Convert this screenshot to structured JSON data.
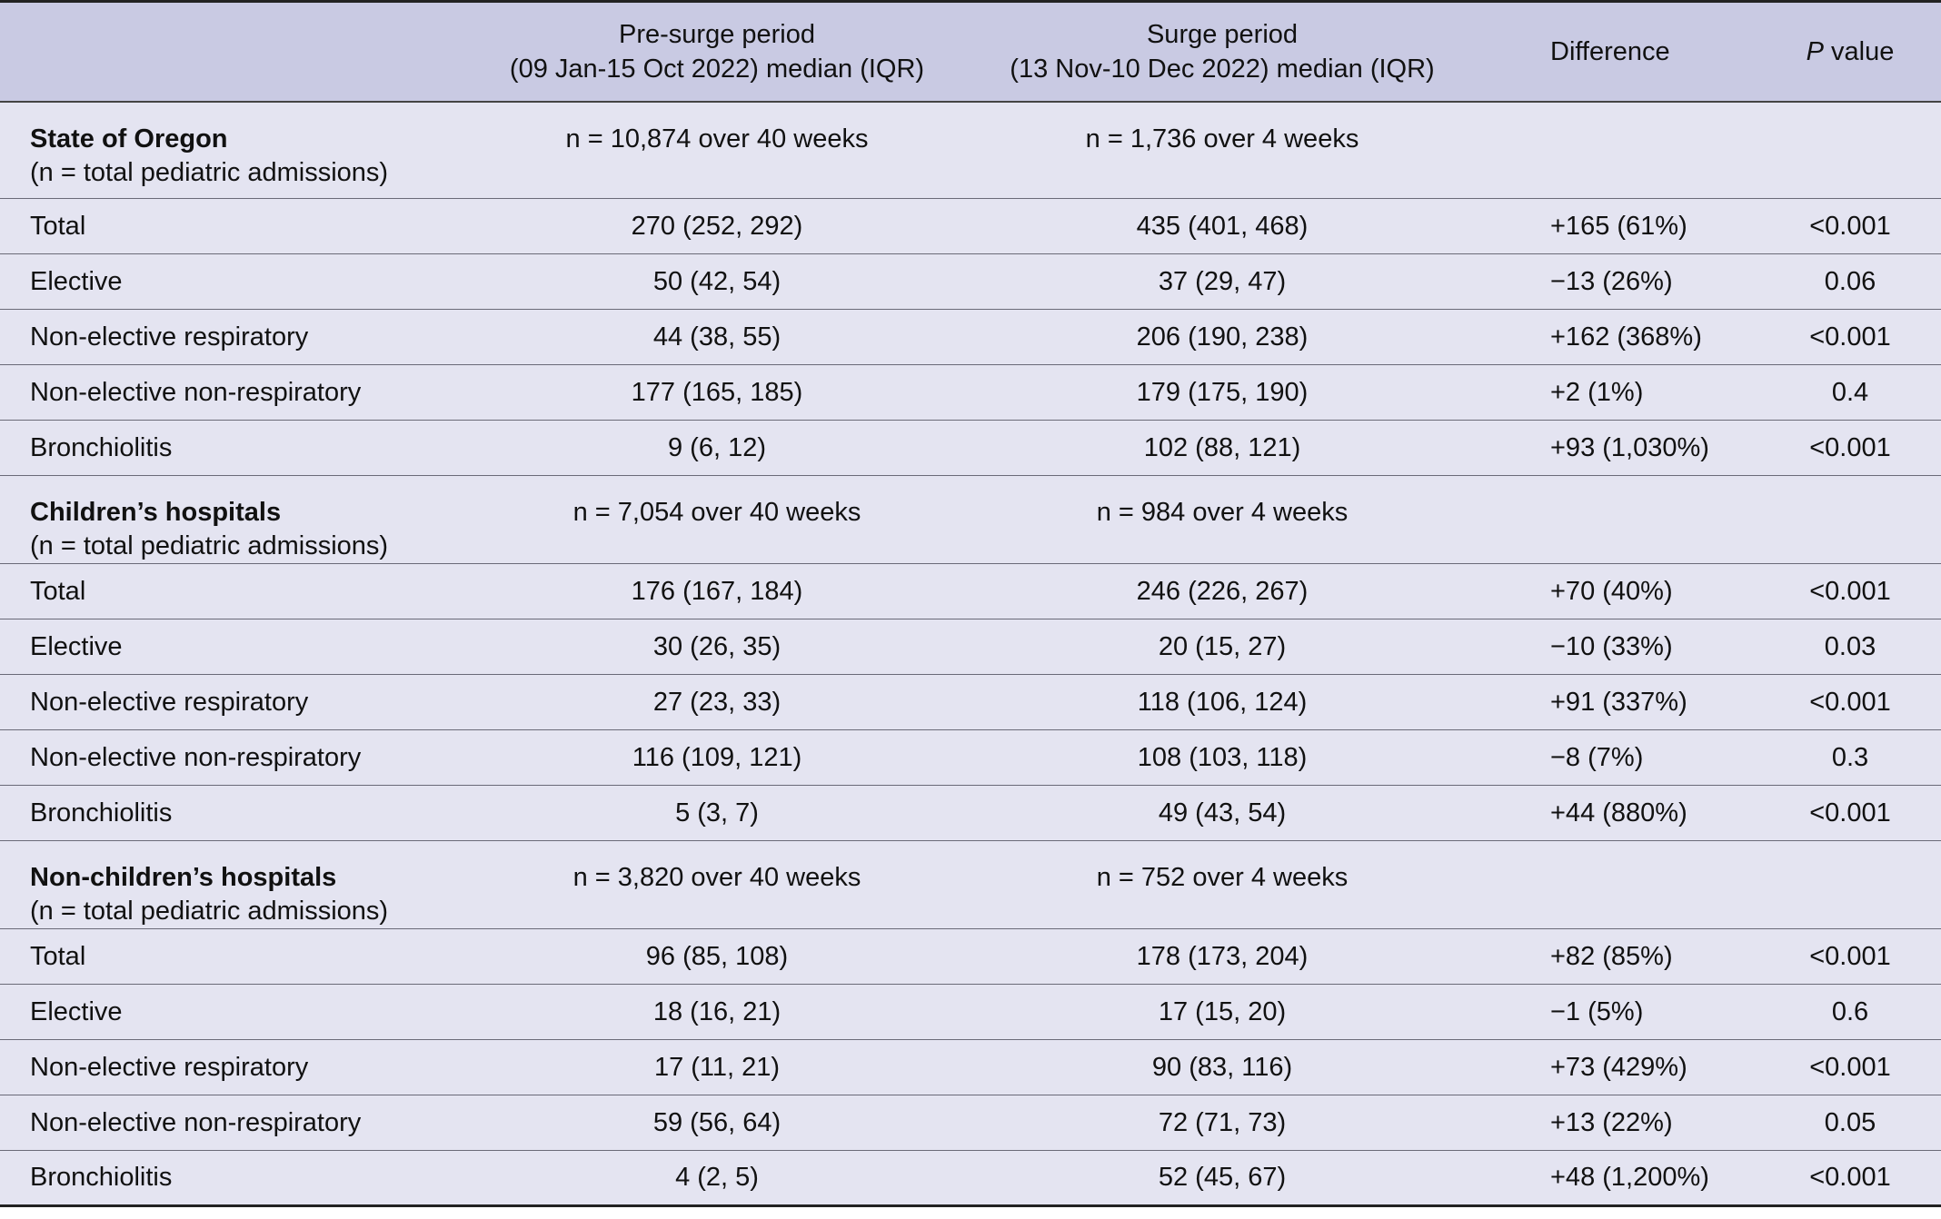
{
  "header": {
    "col_pre_line1": "Pre-surge period",
    "col_pre_line2": "(09 Jan-15 Oct 2022) median (IQR)",
    "col_surge_line1": "Surge period",
    "col_surge_line2": "(13 Nov-10 Dec 2022) median (IQR)",
    "col_diff": "Difference",
    "col_p_italic": "P",
    "col_p_rest": " value"
  },
  "sections": [
    {
      "name": "State of Oregon",
      "sub": "(n = total pediatric admissions)",
      "n_pre": "n = 10,874 over 40 weeks",
      "n_surge": "n = 1,736 over 4 weeks",
      "rows": [
        {
          "label": "Total",
          "pre": "270 (252, 292)",
          "surge": "435 (401, 468)",
          "diff": "+165 (61%)",
          "p": "<0.001"
        },
        {
          "label": "Elective",
          "pre": "50 (42, 54)",
          "surge": "37 (29, 47)",
          "diff": "−13 (26%)",
          "p": "0.06"
        },
        {
          "label": "Non-elective respiratory",
          "pre": "44 (38, 55)",
          "surge": "206 (190, 238)",
          "diff": "+162 (368%)",
          "p": "<0.001"
        },
        {
          "label": "Non-elective non-respiratory",
          "pre": "177 (165, 185)",
          "surge": "179 (175, 190)",
          "diff": "+2 (1%)",
          "p": "0.4"
        },
        {
          "label": "Bronchiolitis",
          "pre": "9 (6, 12)",
          "surge": "102 (88, 121)",
          "diff": "+93 (1,030%)",
          "p": "<0.001"
        }
      ]
    },
    {
      "name": "Children’s hospitals",
      "sub": "(n = total pediatric admissions)",
      "n_pre": "n = 7,054 over 40 weeks",
      "n_surge": "n = 984 over 4 weeks",
      "rows": [
        {
          "label": "Total",
          "pre": "176 (167, 184)",
          "surge": "246 (226, 267)",
          "diff": "+70 (40%)",
          "p": "<0.001"
        },
        {
          "label": "Elective",
          "pre": "30 (26, 35)",
          "surge": "20 (15, 27)",
          "diff": "−10 (33%)",
          "p": "0.03"
        },
        {
          "label": "Non-elective respiratory",
          "pre": "27 (23, 33)",
          "surge": "118 (106, 124)",
          "diff": "+91 (337%)",
          "p": "<0.001"
        },
        {
          "label": "Non-elective non-respiratory",
          "pre": "116 (109, 121)",
          "surge": "108 (103, 118)",
          "diff": "−8 (7%)",
          "p": "0.3"
        },
        {
          "label": "Bronchiolitis",
          "pre": "5 (3, 7)",
          "surge": "49 (43, 54)",
          "diff": "+44 (880%)",
          "p": "<0.001"
        }
      ]
    },
    {
      "name": "Non-children’s hospitals",
      "sub": "(n = total pediatric admissions)",
      "n_pre": "n = 3,820 over 40 weeks",
      "n_surge": "n = 752 over 4 weeks",
      "rows": [
        {
          "label": "Total",
          "pre": "96 (85, 108)",
          "surge": "178 (173, 204)",
          "diff": "+82 (85%)",
          "p": "<0.001"
        },
        {
          "label": "Elective",
          "pre": "18 (16, 21)",
          "surge": "17 (15, 20)",
          "diff": "−1 (5%)",
          "p": "0.6"
        },
        {
          "label": "Non-elective respiratory",
          "pre": "17 (11, 21)",
          "surge": "90 (83, 116)",
          "diff": "+73 (429%)",
          "p": "<0.001"
        },
        {
          "label": "Non-elective non-respiratory",
          "pre": "59 (56, 64)",
          "surge": "72 (71, 73)",
          "diff": "+13 (22%)",
          "p": "0.05"
        },
        {
          "label": "Bronchiolitis",
          "pre": "4 (2, 5)",
          "surge": "52 (45, 67)",
          "diff": "+48 (1,200%)",
          "p": "<0.001"
        }
      ]
    }
  ]
}
